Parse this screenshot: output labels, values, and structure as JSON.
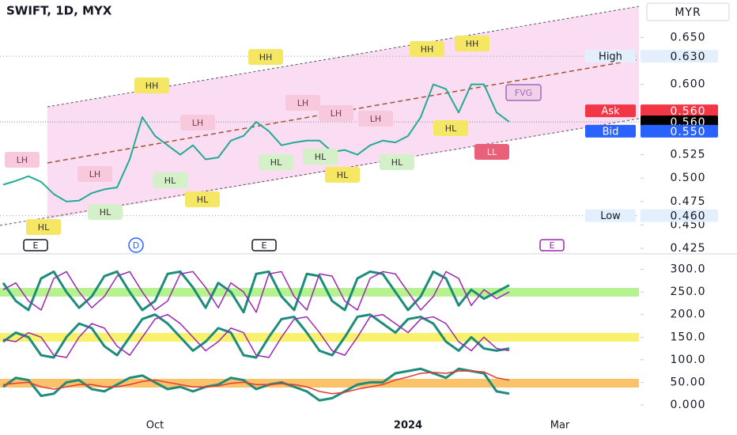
{
  "chart_data": {
    "type": "line",
    "title": "SWIFT, 1D, MYX",
    "currency": "MYR",
    "categories": [
      null,
      null,
      null,
      null,
      null,
      null,
      null,
      null,
      null,
      null,
      null,
      null,
      "Oct",
      null,
      null,
      null,
      null,
      null,
      null,
      null,
      null,
      null,
      null,
      null,
      null,
      null,
      null,
      null,
      null,
      null,
      null,
      null,
      "2024",
      null,
      null,
      null,
      null,
      null,
      null,
      null,
      null,
      null,
      null,
      null,
      "Mar"
    ],
    "series": [
      {
        "color": "#22ab94",
        "values": [
          0.493,
          0.497,
          0.502,
          0.496,
          0.483,
          0.475,
          0.476,
          0.484,
          0.488,
          0.49,
          0.52,
          0.565,
          0.545,
          0.535,
          0.525,
          0.535,
          0.52,
          0.522,
          0.54,
          0.545,
          0.56,
          0.55,
          0.535,
          0.538,
          0.54,
          0.54,
          0.528,
          0.53,
          0.525,
          0.535,
          0.54,
          0.538,
          0.545,
          0.565,
          0.6,
          0.595,
          0.57,
          0.6,
          0.6,
          0.57,
          0.56,
          null,
          null,
          null,
          null
        ]
      },
      {
        "color": "#1e8c7a",
        "axis": "y2",
        "values": [
          270,
          230,
          210,
          280,
          295,
          250,
          215,
          240,
          285,
          295,
          250,
          210,
          230,
          290,
          295,
          260,
          215,
          270,
          250,
          205,
          290,
          295,
          240,
          210,
          290,
          285,
          230,
          210,
          280,
          295,
          290,
          250,
          210,
          240,
          295,
          280,
          220,
          255,
          235,
          250,
          265,
          null,
          null,
          null,
          null
        ]
      },
      {
        "color": "#9c27b0",
        "axis": "y2",
        "values": [
          255,
          270,
          230,
          210,
          280,
          295,
          250,
          215,
          240,
          285,
          295,
          250,
          210,
          230,
          290,
          295,
          260,
          215,
          270,
          250,
          205,
          290,
          295,
          240,
          210,
          290,
          285,
          230,
          210,
          280,
          295,
          290,
          250,
          210,
          240,
          295,
          280,
          220,
          255,
          235,
          250,
          null,
          null,
          null,
          null
        ]
      },
      {
        "color": "#1e8c7a",
        "axis": "y2",
        "values": [
          140,
          160,
          150,
          110,
          105,
          150,
          180,
          170,
          130,
          110,
          150,
          190,
          200,
          180,
          150,
          120,
          140,
          170,
          160,
          110,
          105,
          150,
          190,
          195,
          160,
          120,
          110,
          150,
          195,
          200,
          180,
          160,
          190,
          195,
          180,
          140,
          120,
          150,
          125,
          120,
          125,
          null,
          null,
          null,
          null
        ]
      },
      {
        "color": "#9c27b0",
        "axis": "y2",
        "values": [
          145,
          140,
          160,
          150,
          110,
          105,
          150,
          180,
          170,
          130,
          110,
          150,
          190,
          200,
          180,
          150,
          120,
          140,
          170,
          160,
          110,
          105,
          150,
          190,
          195,
          160,
          120,
          110,
          150,
          195,
          200,
          180,
          160,
          190,
          195,
          180,
          140,
          120,
          150,
          125,
          120,
          null,
          null,
          null,
          null
        ]
      },
      {
        "color": "#1e8c7a",
        "axis": "y2",
        "values": [
          40,
          60,
          55,
          20,
          25,
          50,
          55,
          35,
          30,
          45,
          60,
          65,
          50,
          35,
          40,
          30,
          40,
          45,
          60,
          55,
          35,
          45,
          50,
          40,
          30,
          10,
          15,
          30,
          45,
          50,
          50,
          70,
          75,
          80,
          70,
          60,
          80,
          75,
          70,
          30,
          25,
          null,
          null,
          null,
          null
        ]
      },
      {
        "color": "#e53935",
        "axis": "y2",
        "values": [
          45,
          48,
          50,
          40,
          35,
          40,
          45,
          45,
          40,
          40,
          45,
          52,
          55,
          50,
          45,
          40,
          40,
          42,
          48,
          50,
          45,
          45,
          47,
          45,
          40,
          30,
          25,
          28,
          35,
          40,
          45,
          55,
          62,
          70,
          72,
          70,
          75,
          75,
          73,
          60,
          55,
          null,
          null,
          null,
          null
        ]
      }
    ],
    "ylim": [
      0.42,
      0.69
    ],
    "yticks": [
      {
        "value": 0.65,
        "label": "0.650"
      },
      {
        "value": 0.6,
        "label": "0.600"
      },
      {
        "value": 0.525,
        "label": "0.525"
      },
      {
        "value": 0.5,
        "label": "0.500"
      },
      {
        "value": 0.475,
        "label": "0.475"
      },
      {
        "value": 0.45,
        "label": "0.450"
      },
      {
        "value": 0.425,
        "label": "0.425"
      }
    ],
    "y2lim": [
      -31.5,
      332.5
    ],
    "y2ticks": [
      {
        "value": 300,
        "label": "300.0"
      },
      {
        "value": 250,
        "label": "250.0"
      },
      {
        "value": 200,
        "label": "200.0"
      },
      {
        "value": 150,
        "label": "150.0"
      },
      {
        "value": 100,
        "label": "100.0"
      },
      {
        "value": 50,
        "label": "50.00"
      },
      {
        "value": 0,
        "label": "0.000"
      }
    ],
    "levels": [
      {
        "label": "High",
        "value": 0.63,
        "value_label": "0.630"
      },
      {
        "label": "Low",
        "value": 0.46,
        "value_label": "0.460"
      },
      {
        "label": "Ask",
        "value": 0.56,
        "value_label": "0.560"
      },
      {
        "value": 0.56,
        "value_label": "0.560"
      },
      {
        "label": "Bid",
        "value": 0.55,
        "value_label": "0.550"
      }
    ],
    "annotations": [
      "LH",
      "HL",
      "LH",
      "HL",
      "HH",
      "HL",
      "LH",
      "HL",
      "HH",
      "LH",
      "HL",
      "LH",
      "HL",
      "HL",
      "LH",
      "HL",
      "HH",
      "HH",
      "HL",
      "LL",
      "E",
      "D",
      "E",
      "E",
      "FVG"
    ]
  }
}
